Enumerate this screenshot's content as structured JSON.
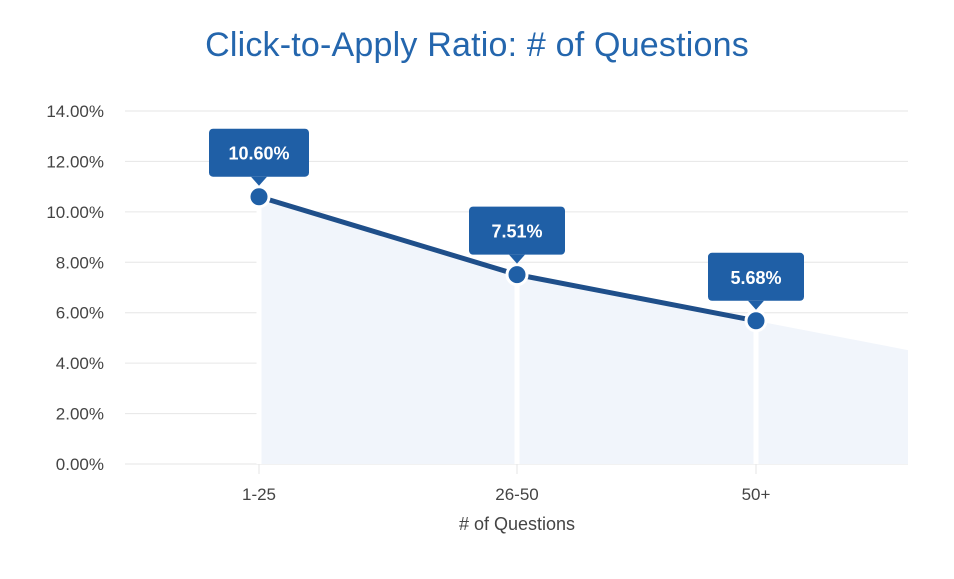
{
  "chart_data": {
    "type": "area",
    "title": "Click-to-Apply Ratio: # of Questions",
    "xlabel": "# of Questions",
    "ylabel": "",
    "categories": [
      "1-25",
      "26-50",
      "50+"
    ],
    "values": [
      10.6,
      7.51,
      5.68
    ],
    "data_labels": [
      "10.60%",
      "7.51%",
      "5.68%"
    ],
    "ylim": [
      0,
      14
    ],
    "yticks": [
      0,
      2,
      4,
      6,
      8,
      10,
      12,
      14
    ],
    "ytick_labels": [
      "0.00%",
      "2.00%",
      "4.00%",
      "6.00%",
      "8.00%",
      "10.00%",
      "12.00%",
      "14.00%"
    ],
    "grid": true,
    "legend": "none",
    "colors": {
      "title": "#2466ad",
      "line": "#1f4f8a",
      "marker": "#1f5fa6",
      "label_bg": "#1f5fa6",
      "area_fill": "#f1f5fb",
      "grid": "#e6e6e6",
      "text": "#444444"
    }
  }
}
